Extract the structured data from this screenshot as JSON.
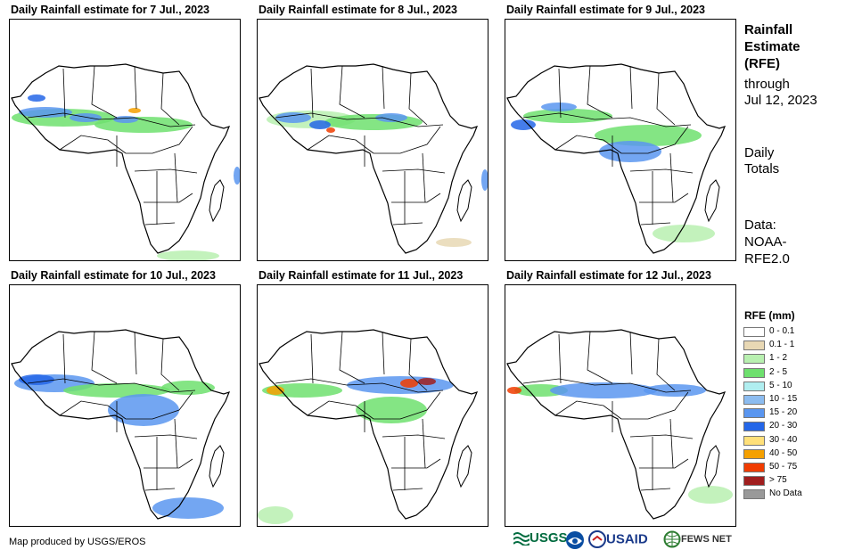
{
  "panels": [
    {
      "title": "Daily Rainfall estimate for 7 Jul., 2023"
    },
    {
      "title": "Daily Rainfall estimate for 8 Jul., 2023"
    },
    {
      "title": "Daily Rainfall estimate for 9 Jul., 2023"
    },
    {
      "title": "Daily Rainfall estimate for 10 Jul., 2023"
    },
    {
      "title": "Daily Rainfall estimate for 11 Jul., 2023"
    },
    {
      "title": "Daily Rainfall estimate for 12 Jul., 2023"
    }
  ],
  "sidebar": {
    "title_lines": [
      "Rainfall",
      "Estimate",
      "(RFE)"
    ],
    "through": "through",
    "date": "Jul 12, 2023",
    "daily": "Daily",
    "totals": "Totals",
    "data_lines": [
      "Data:",
      "NOAA-",
      "RFE2.0"
    ]
  },
  "legend": {
    "title": "RFE (mm)",
    "items": [
      {
        "label": "0 - 0.1",
        "color": "#ffffff"
      },
      {
        "label": "0.1 - 1",
        "color": "#e8d8b4"
      },
      {
        "label": "1 - 2",
        "color": "#b8f0b0"
      },
      {
        "label": "2 - 5",
        "color": "#6ee06e"
      },
      {
        "label": "5 - 10",
        "color": "#b0eef0"
      },
      {
        "label": "10 - 15",
        "color": "#8cbcf0"
      },
      {
        "label": "15 - 20",
        "color": "#5a96f0"
      },
      {
        "label": "20 - 30",
        "color": "#2466e8"
      },
      {
        "label": "30 - 40",
        "color": "#ffe07a"
      },
      {
        "label": "40 - 50",
        "color": "#f5a000"
      },
      {
        "label": "50 - 75",
        "color": "#f03c00"
      },
      {
        "label": "> 75",
        "color": "#a01e1e"
      },
      {
        "label": "No Data",
        "color": "#999999"
      }
    ]
  },
  "footer": {
    "credit": "Map produced by USGS/EROS",
    "logo_usgs": "USGS",
    "logo_usaid": "USAID",
    "logo_fews": "FEWS NET"
  },
  "colors": {
    "outline": "#000000",
    "land": "#ffffff"
  }
}
